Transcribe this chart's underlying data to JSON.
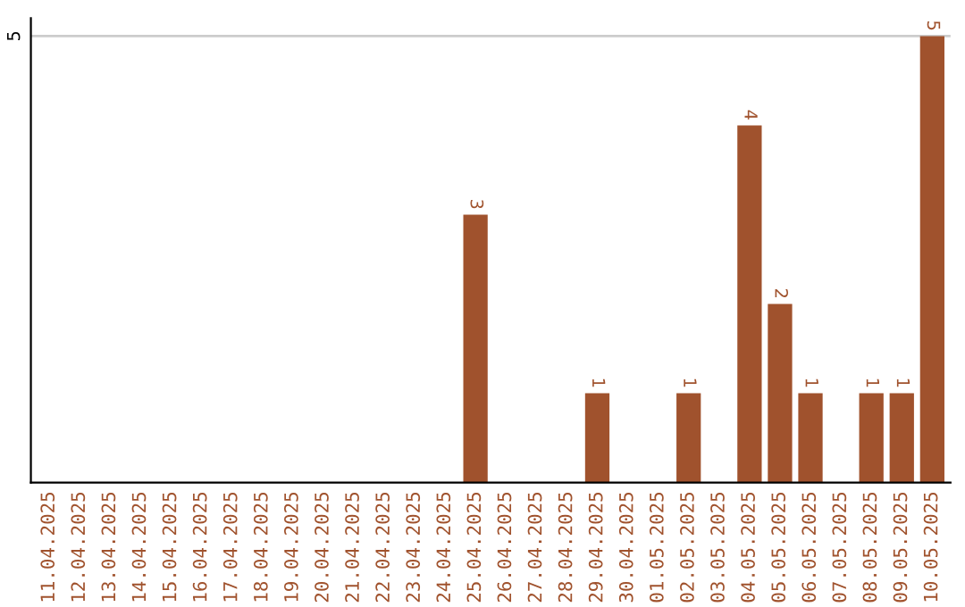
{
  "chart_data": {
    "type": "bar",
    "categories": [
      "11.04.2025",
      "12.04.2025",
      "13.04.2025",
      "14.04.2025",
      "15.04.2025",
      "16.04.2025",
      "17.04.2025",
      "18.04.2025",
      "19.04.2025",
      "20.04.2025",
      "21.04.2025",
      "22.04.2025",
      "23.04.2025",
      "24.04.2025",
      "25.04.2025",
      "26.04.2025",
      "27.04.2025",
      "28.04.2025",
      "29.04.2025",
      "30.04.2025",
      "01.05.2025",
      "02.05.2025",
      "03.05.2025",
      "04.05.2025",
      "05.05.2025",
      "06.05.2025",
      "07.05.2025",
      "08.05.2025",
      "09.05.2025",
      "10.05.2025"
    ],
    "values": [
      null,
      null,
      null,
      null,
      null,
      null,
      null,
      null,
      null,
      null,
      null,
      null,
      null,
      null,
      3,
      null,
      null,
      null,
      1,
      null,
      null,
      1,
      null,
      4,
      2,
      1,
      null,
      1,
      1,
      5
    ],
    "value_labels": [
      null,
      null,
      null,
      null,
      null,
      null,
      null,
      null,
      null,
      null,
      null,
      null,
      null,
      null,
      "3",
      null,
      null,
      null,
      "1",
      null,
      null,
      "1",
      null,
      "4",
      "2",
      "1",
      null,
      "1",
      "1",
      "5"
    ],
    "color": "#a0522d",
    "ylim": [
      0,
      5.2
    ],
    "ref_lines": [
      {
        "axis": "y",
        "value": 5,
        "label": "5",
        "color": "#cccccc"
      }
    ]
  }
}
